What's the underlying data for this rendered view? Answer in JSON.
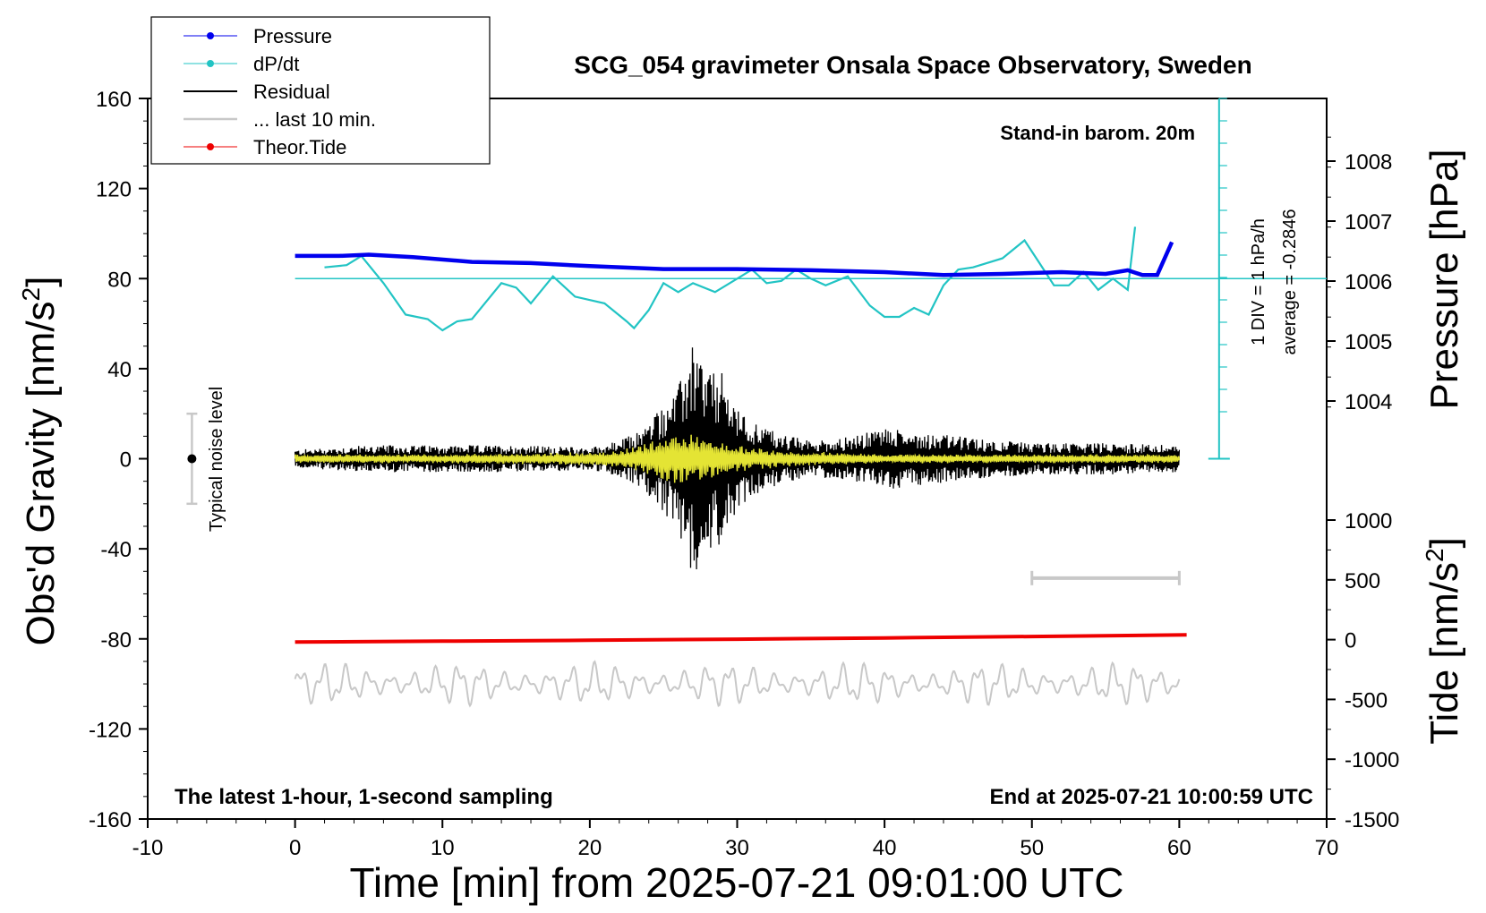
{
  "chart_data": {
    "type": "line",
    "title": "SCG_054 gravimeter Onsala Space Observatory, Sweden",
    "xlabel": "Time [min] from 2025-07-21 09:01:00 UTC",
    "ylabel_left_text": "Obs'd Gravity [nm/s",
    "ylabel_left_sup": "2",
    "ylabel_left_close": "]",
    "ylabel_right_top": "Pressure [hPa]",
    "ylabel_right_bottom_text": "Tide [nm/s",
    "ylabel_right_bottom_sup": "2",
    "ylabel_right_bottom_close": "]",
    "xlim": [
      -10,
      70
    ],
    "ylim": [
      -160,
      160
    ],
    "x_ticks": [
      "-10",
      "0",
      "10",
      "20",
      "30",
      "40",
      "50",
      "60",
      "70"
    ],
    "y_ticks": [
      "160",
      "120",
      "80",
      "40",
      "0",
      "-40",
      "-80",
      "-120",
      "-160"
    ],
    "pressure_ticks": [
      "1008",
      "1007",
      "1006",
      "1005",
      "1004"
    ],
    "tide_ticks": [
      "1000",
      "500",
      "0",
      "-500",
      "-1000",
      "-1500"
    ],
    "annotations": {
      "barometer": "Stand-in barom. 20m",
      "bottom_left": "The latest 1-hour, 1-second sampling",
      "bottom_right": "End at 2025-07-21 10:00:59 UTC",
      "noise": "Typical noise level",
      "div": "1 DIV = 1 hPa/h",
      "average": "average = -0.2846"
    },
    "legend": {
      "placement": "top-left",
      "entries": [
        "Pressure",
        "dP/dt",
        "Residual",
        "... last 10 min.",
        "Theor.Tide"
      ]
    },
    "colors": {
      "pressure": "#0000ee",
      "dpdt": "#22c4c4",
      "residual": "#000000",
      "last10": "#c8c8c8",
      "tide": "#ee0000",
      "filtered": "#e4e434"
    },
    "series": {
      "pressure_hpa": {
        "x": [
          0,
          3,
          5,
          8,
          12,
          16,
          20,
          25,
          30,
          35,
          40,
          44,
          48,
          52,
          55,
          56.5,
          57.5,
          58.5,
          59.5
        ],
        "y": [
          1006.42,
          1006.42,
          1006.44,
          1006.4,
          1006.32,
          1006.3,
          1006.25,
          1006.2,
          1006.2,
          1006.18,
          1006.15,
          1006.1,
          1006.12,
          1006.15,
          1006.12,
          1006.18,
          1006.1,
          1006.1,
          1006.65
        ]
      },
      "dpdt_level": {
        "x": [
          2,
          3.5,
          4.5,
          6,
          7.5,
          9,
          10,
          11,
          12,
          13,
          14,
          15,
          16,
          17.5,
          19,
          21,
          22.5,
          23,
          24,
          25,
          26,
          27,
          28.5,
          30,
          31,
          32,
          33,
          34,
          35,
          36,
          37.5,
          39,
          40,
          41,
          42,
          43,
          44,
          45,
          46,
          48,
          49.5,
          50.5,
          51.5,
          52.5,
          53.5,
          54.5,
          55.5,
          56.5,
          57
        ],
        "y": [
          85,
          86,
          90,
          78,
          64,
          62,
          57,
          61,
          62,
          70,
          78,
          76,
          69,
          81,
          72,
          69,
          61,
          58,
          66,
          78,
          74,
          78,
          74,
          80,
          84,
          78,
          79,
          84,
          80,
          77,
          81,
          68,
          63,
          63,
          67,
          64,
          77,
          84,
          85,
          89,
          97,
          87,
          77,
          77,
          83,
          75,
          80,
          75,
          103
        ]
      },
      "residual_envelope": {
        "x": [
          0,
          5,
          10,
          15,
          20,
          22,
          23.5,
          25,
          26,
          27,
          28,
          29,
          30,
          31,
          33,
          35,
          38,
          40,
          42,
          44,
          46,
          48,
          50,
          55,
          60
        ],
        "amplitude": [
          4,
          6,
          6,
          6,
          5,
          8,
          13,
          25,
          32,
          52,
          40,
          38,
          22,
          17,
          11,
          8,
          10,
          14,
          12,
          11,
          9,
          8,
          7,
          7,
          6
        ]
      },
      "filtered_envelope": {
        "x": [
          0,
          10,
          20,
          22,
          24,
          25.5,
          27,
          29,
          31,
          33,
          36,
          40,
          50,
          60
        ],
        "amplitude": [
          2,
          2,
          3,
          4,
          8,
          12,
          12,
          8,
          5,
          4,
          3,
          2,
          2,
          2
        ]
      },
      "theor_tide_nms2": {
        "x": [
          0,
          10,
          20,
          30,
          40,
          50,
          60.5
        ],
        "y": [
          -20,
          -13,
          -5,
          4,
          14,
          26,
          40
        ]
      },
      "last10_offset": {
        "x": [
          0,
          10,
          20,
          30,
          40,
          50,
          60
        ],
        "center": -100,
        "amplitude": 10
      }
    },
    "noise_bar": {
      "x": -7,
      "center": 0,
      "low": -20,
      "high": 20
    },
    "last10_span": {
      "x_start": 50,
      "x_end": 60,
      "y": -53
    },
    "grid": false
  }
}
